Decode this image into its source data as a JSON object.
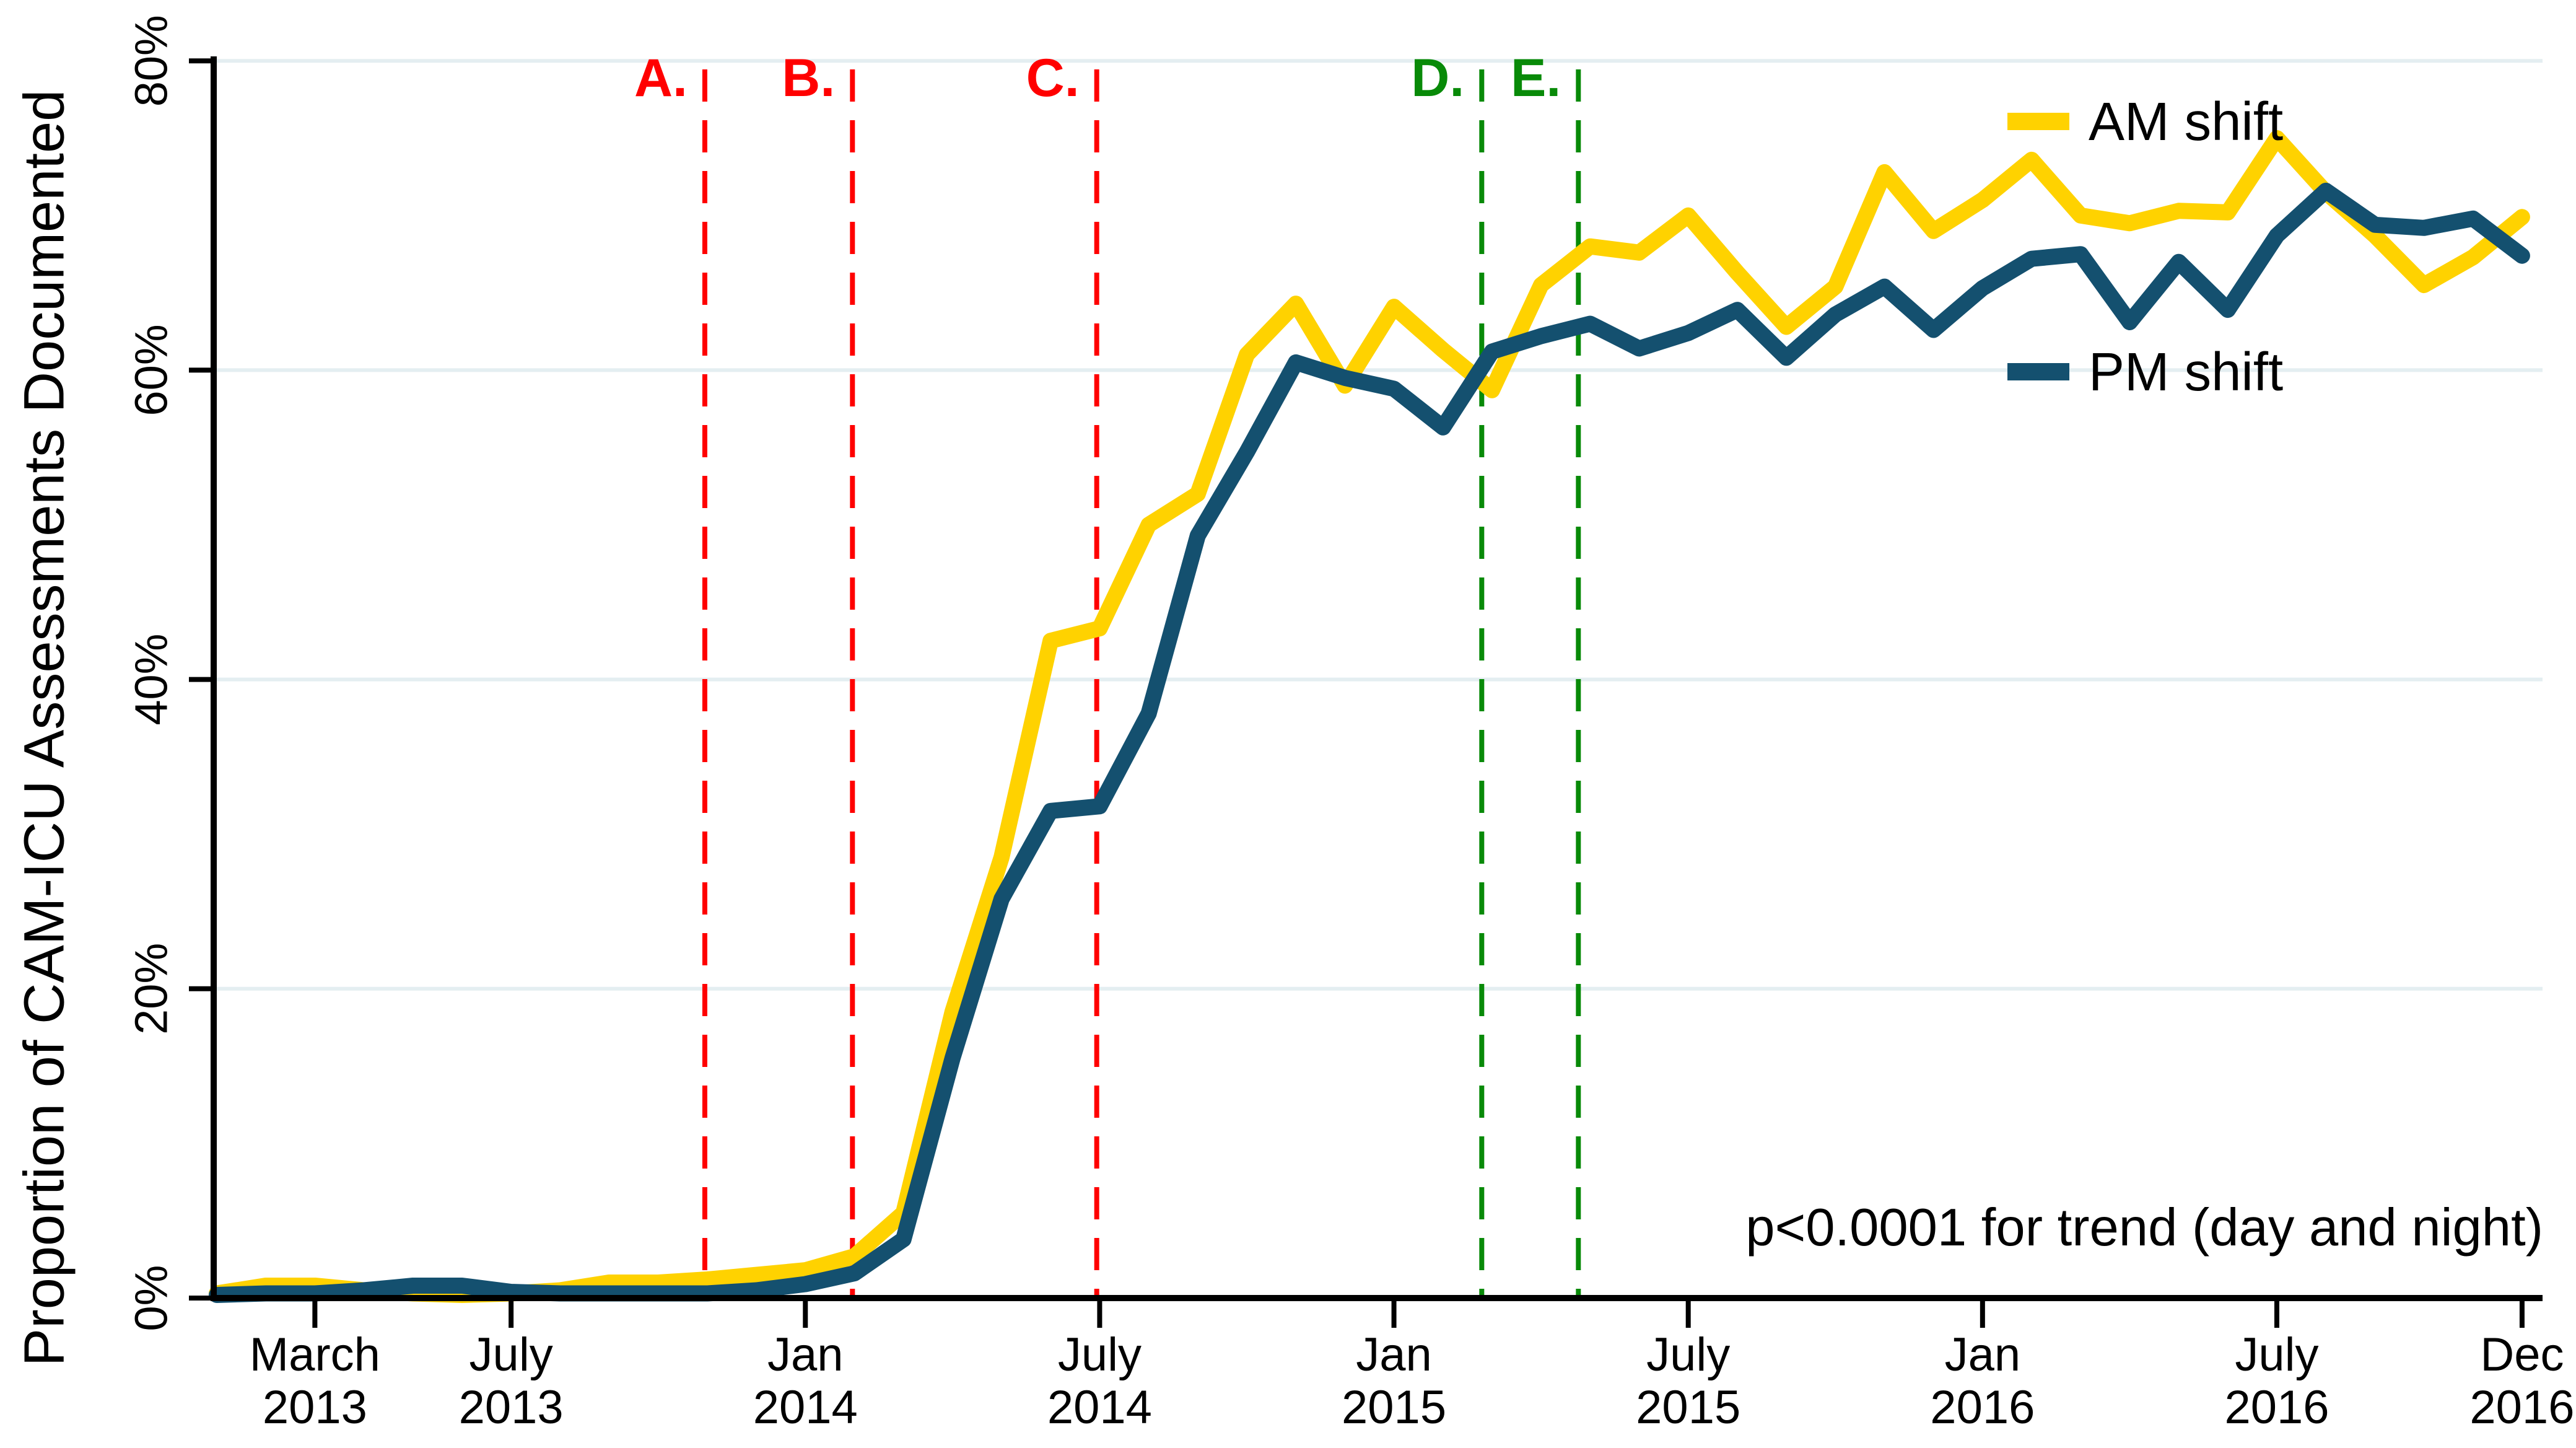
{
  "chart_data": {
    "type": "line",
    "title": "",
    "xlabel": "",
    "ylabel": "Proportion of CAM-ICU Assessments Documented",
    "annotation": "p<0.0001 for trend (day and night)",
    "ylim": [
      0,
      80
    ],
    "grid": "horizontal-light",
    "grid_color": "#E4EEF1",
    "axis_color": "#000000",
    "x_unit": "month",
    "x_start": "Jan 2013",
    "x_end": "Dec 2016",
    "yticks": [
      {
        "value": 0,
        "label": "0%"
      },
      {
        "value": 20,
        "label": "20%"
      },
      {
        "value": 40,
        "label": "40%"
      },
      {
        "value": 60,
        "label": "60%"
      },
      {
        "value": 80,
        "label": "80%"
      }
    ],
    "xticks": [
      {
        "month_index": 2,
        "line1": "March",
        "line2": "2013"
      },
      {
        "month_index": 6,
        "line1": "July",
        "line2": "2013"
      },
      {
        "month_index": 12,
        "line1": "Jan",
        "line2": "2014"
      },
      {
        "month_index": 18,
        "line1": "July",
        "line2": "2014"
      },
      {
        "month_index": 24,
        "line1": "Jan",
        "line2": "2015"
      },
      {
        "month_index": 30,
        "line1": "July",
        "line2": "2015"
      },
      {
        "month_index": 36,
        "line1": "Jan",
        "line2": "2016"
      },
      {
        "month_index": 42,
        "line1": "July",
        "line2": "2016"
      },
      {
        "month_index": 47,
        "line1": "Dec",
        "line2": "2016"
      }
    ],
    "event_lines": [
      {
        "label": "A.",
        "month_index": 9.95,
        "color": "#FF0000"
      },
      {
        "label": "B.",
        "month_index": 12.96,
        "color": "#FF0000"
      },
      {
        "label": "C.",
        "month_index": 17.94,
        "color": "#FF0000"
      },
      {
        "label": "D.",
        "month_index": 25.79,
        "color": "#088A08"
      },
      {
        "label": "E.",
        "month_index": 27.76,
        "color": "#088A08"
      }
    ],
    "legend": {
      "items": [
        {
          "label": "AM shift",
          "color": "#FFD200"
        },
        {
          "label": "PM shift",
          "color": "#14506F"
        }
      ]
    },
    "series": [
      {
        "name": "AM shift",
        "color": "#FFD200",
        "values": [
          0.3,
          0.8,
          0.8,
          0.5,
          0.3,
          0.2,
          0.3,
          0.5,
          1.0,
          1.0,
          1.2,
          1.5,
          1.8,
          2.7,
          5.5,
          18.5,
          28.5,
          42.5,
          43.3,
          50.0,
          52.0,
          61.0,
          64.3,
          59.0,
          64.1,
          61.3,
          58.7,
          65.5,
          68.0,
          67.6,
          70.0,
          66.3,
          62.8,
          65.4,
          72.8,
          69.0,
          71.0,
          73.6,
          70.0,
          69.5,
          70.3,
          70.2,
          75.0,
          71.5,
          68.7,
          65.5,
          67.3,
          69.9
        ]
      },
      {
        "name": "PM shift",
        "color": "#14506F",
        "values": [
          0.2,
          0.3,
          0.3,
          0.5,
          0.8,
          0.8,
          0.4,
          0.3,
          0.3,
          0.3,
          0.3,
          0.5,
          0.9,
          1.6,
          3.8,
          15.5,
          25.8,
          31.5,
          31.8,
          37.8,
          49.3,
          54.7,
          60.5,
          59.5,
          58.8,
          56.3,
          61.2,
          62.2,
          63.0,
          61.4,
          62.4,
          63.9,
          60.8,
          63.6,
          65.4,
          62.6,
          65.3,
          67.2,
          67.5,
          63.1,
          67.0,
          63.9,
          68.7,
          71.6,
          69.4,
          69.2,
          69.8,
          67.4
        ]
      }
    ]
  }
}
